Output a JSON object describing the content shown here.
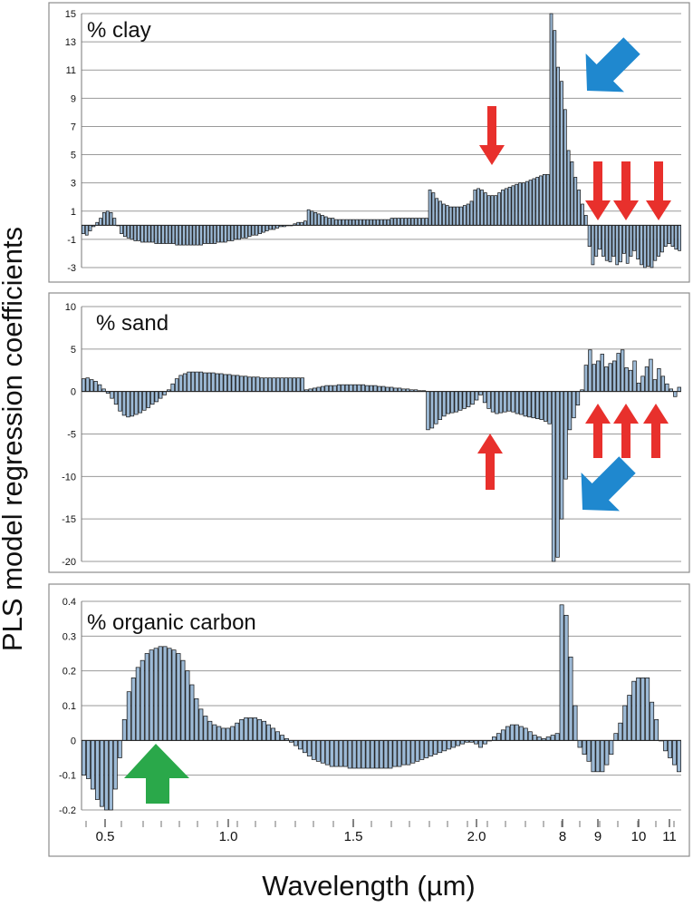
{
  "figure": {
    "ylabel": "PLS model regression coefficients",
    "xlabel": "Wavelength (µm)"
  },
  "colors": {
    "bar_fill": "#9dbad6",
    "bar_stroke": "#111111",
    "grid": "#9a9a9a",
    "panel_border": "#8c8c8c",
    "red_arrow": "#e8302c",
    "blue_arrow": "#1f88cf",
    "green_arrow": "#2aa84a"
  },
  "x_axis": {
    "ticks": [
      "0.5",
      "1.0",
      "1.5",
      "2.0",
      "8",
      "9",
      "10",
      "11"
    ]
  },
  "chart_data": [
    {
      "type": "bar",
      "title": "% clay",
      "ylim": [
        -3,
        15
      ],
      "yticks": [
        "15",
        "13",
        "11",
        "9",
        "7",
        "5",
        "3",
        "1",
        "-1",
        "-3"
      ],
      "grid": true,
      "annotations": [
        "red-arrow-down x4",
        "blue-arrow"
      ],
      "values": [
        -0.6,
        -0.7,
        -0.4,
        -0.1,
        0.2,
        0.5,
        0.9,
        1.0,
        0.9,
        0.5,
        0.0,
        -0.6,
        -0.8,
        -0.9,
        -1.0,
        -1.1,
        -1.1,
        -1.2,
        -1.2,
        -1.2,
        -1.2,
        -1.3,
        -1.3,
        -1.3,
        -1.3,
        -1.3,
        -1.3,
        -1.4,
        -1.4,
        -1.4,
        -1.4,
        -1.4,
        -1.4,
        -1.4,
        -1.4,
        -1.3,
        -1.3,
        -1.3,
        -1.3,
        -1.2,
        -1.2,
        -1.2,
        -1.1,
        -1.1,
        -1.0,
        -1.0,
        -0.9,
        -0.9,
        -0.8,
        -0.7,
        -0.7,
        -0.6,
        -0.5,
        -0.4,
        -0.3,
        -0.3,
        -0.2,
        -0.1,
        -0.1,
        0.0,
        0.0,
        0.1,
        0.2,
        0.2,
        0.3,
        1.1,
        1.0,
        0.9,
        0.8,
        0.7,
        0.6,
        0.5,
        0.5,
        0.4,
        0.4,
        0.4,
        0.4,
        0.4,
        0.4,
        0.4,
        0.4,
        0.4,
        0.4,
        0.4,
        0.4,
        0.4,
        0.4,
        0.4,
        0.4,
        0.5,
        0.5,
        0.5,
        0.5,
        0.5,
        0.5,
        0.5,
        0.5,
        0.5,
        0.5,
        0.5,
        2.5,
        2.3,
        1.9,
        1.7,
        1.5,
        1.4,
        1.3,
        1.3,
        1.3,
        1.3,
        1.4,
        1.5,
        1.7,
        2.5,
        2.6,
        2.5,
        2.3,
        2.1,
        2.1,
        2.1,
        2.3,
        2.5,
        2.6,
        2.7,
        2.8,
        2.9,
        3.0,
        3.0,
        3.1,
        3.2,
        3.3,
        3.4,
        3.5,
        3.6,
        3.6,
        15.0,
        13.8,
        11.2,
        10.2,
        8.2,
        5.3,
        4.5,
        3.4,
        2.5,
        1.5,
        0.7,
        -1.5,
        -2.8,
        -2.2,
        -1.7,
        -2.2,
        -2.5,
        -2.6,
        -2.2,
        -2.8,
        -2.6,
        -2.0,
        -2.7,
        -2.2,
        -1.8,
        -2.4,
        -2.8,
        -3.0,
        -2.9,
        -3.0,
        -2.5,
        -2.2,
        -1.9,
        -1.5,
        -1.3,
        -1.5,
        -1.7,
        -1.8
      ]
    },
    {
      "type": "bar",
      "title": "% sand",
      "ylim": [
        -20,
        10
      ],
      "yticks": [
        "10",
        "5",
        "0",
        "-5",
        "-10",
        "-15",
        "-20"
      ],
      "grid": true,
      "annotations": [
        "red-arrow-up x4",
        "blue-arrow"
      ],
      "values": [
        1.5,
        1.6,
        1.4,
        1.2,
        0.8,
        0.3,
        -0.2,
        -0.8,
        -1.5,
        -2.3,
        -2.8,
        -3.0,
        -2.9,
        -2.7,
        -2.5,
        -2.2,
        -1.9,
        -1.5,
        -1.2,
        -0.8,
        -0.4,
        0.2,
        0.9,
        1.5,
        1.9,
        2.1,
        2.3,
        2.3,
        2.3,
        2.3,
        2.2,
        2.2,
        2.2,
        2.1,
        2.1,
        2.0,
        2.0,
        1.9,
        1.9,
        1.8,
        1.8,
        1.7,
        1.7,
        1.7,
        1.6,
        1.6,
        1.6,
        1.6,
        1.6,
        1.6,
        1.6,
        1.6,
        1.6,
        1.6,
        1.6,
        0.2,
        0.3,
        0.4,
        0.5,
        0.6,
        0.7,
        0.7,
        0.7,
        0.8,
        0.8,
        0.8,
        0.8,
        0.8,
        0.8,
        0.8,
        0.7,
        0.7,
        0.7,
        0.6,
        0.6,
        0.5,
        0.5,
        0.4,
        0.4,
        0.3,
        0.3,
        0.2,
        0.2,
        0.1,
        0.1,
        -4.5,
        -4.3,
        -3.8,
        -3.3,
        -2.9,
        -2.6,
        -2.5,
        -2.4,
        -2.2,
        -2.0,
        -1.8,
        -1.5,
        -1.0,
        -0.4,
        -1.3,
        -2.0,
        -2.4,
        -2.6,
        -2.5,
        -2.4,
        -2.3,
        -2.4,
        -2.6,
        -2.7,
        -2.9,
        -3.0,
        -3.1,
        -3.2,
        -3.3,
        -3.5,
        -3.8,
        -20.0,
        -19.5,
        -15.0,
        -10.3,
        -4.5,
        -3.1,
        -1.6,
        0.2,
        3.1,
        4.9,
        3.2,
        3.6,
        4.4,
        2.9,
        3.3,
        3.6,
        4.5,
        4.9,
        2.8,
        2.5,
        3.6,
        1.0,
        1.8,
        2.9,
        3.8,
        1.4,
        2.7,
        1.8,
        0.9,
        0.3,
        -0.6,
        0.5
      ]
    },
    {
      "type": "bar",
      "title": "% organic carbon",
      "ylim": [
        -0.2,
        0.4
      ],
      "yticks": [
        "0.4",
        "0.3",
        "0.2",
        "0.1",
        "0",
        "-0.1",
        "-0.2"
      ],
      "grid": true,
      "annotations": [
        "green-arrow-up"
      ],
      "values": [
        -0.1,
        -0.11,
        -0.14,
        -0.17,
        -0.19,
        -0.21,
        -0.2,
        -0.14,
        -0.05,
        0.06,
        0.14,
        0.18,
        0.21,
        0.23,
        0.25,
        0.26,
        0.265,
        0.27,
        0.27,
        0.265,
        0.26,
        0.25,
        0.23,
        0.2,
        0.16,
        0.12,
        0.09,
        0.07,
        0.055,
        0.045,
        0.04,
        0.035,
        0.035,
        0.04,
        0.05,
        0.06,
        0.065,
        0.065,
        0.065,
        0.06,
        0.055,
        0.045,
        0.035,
        0.025,
        0.015,
        0.005,
        -0.005,
        -0.015,
        -0.025,
        -0.035,
        -0.045,
        -0.055,
        -0.06,
        -0.065,
        -0.07,
        -0.075,
        -0.075,
        -0.075,
        -0.075,
        -0.08,
        -0.08,
        -0.08,
        -0.08,
        -0.08,
        -0.08,
        -0.08,
        -0.08,
        -0.08,
        -0.08,
        -0.075,
        -0.075,
        -0.07,
        -0.07,
        -0.065,
        -0.06,
        -0.055,
        -0.05,
        -0.045,
        -0.04,
        -0.035,
        -0.03,
        -0.025,
        -0.02,
        -0.015,
        -0.01,
        -0.005,
        -0.005,
        -0.01,
        -0.02,
        -0.01,
        0.0,
        0.01,
        0.02,
        0.03,
        0.04,
        0.045,
        0.045,
        0.04,
        0.035,
        0.025,
        0.015,
        0.01,
        0.005,
        0.01,
        0.015,
        0.02,
        0.39,
        0.36,
        0.24,
        0.1,
        -0.02,
        -0.04,
        -0.06,
        -0.09,
        -0.09,
        -0.09,
        -0.07,
        -0.04,
        0.02,
        0.05,
        0.1,
        0.13,
        0.17,
        0.18,
        0.18,
        0.18,
        0.11,
        0.06,
        0.0,
        -0.03,
        -0.05,
        -0.07,
        -0.09
      ]
    }
  ]
}
